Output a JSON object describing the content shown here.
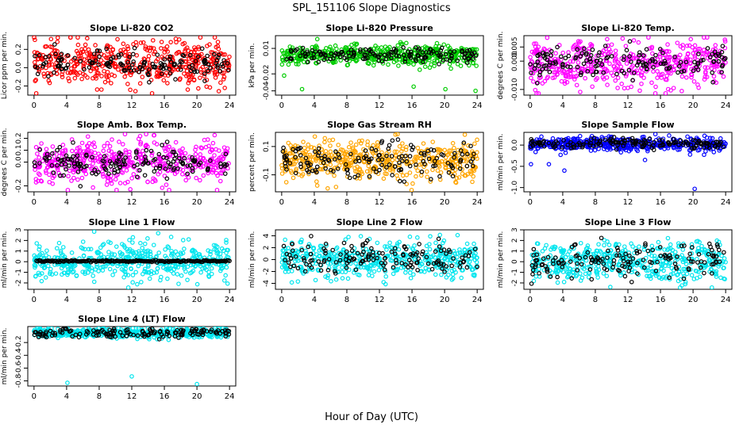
{
  "figure": {
    "title": "SPL_151106  Slope Diagnostics",
    "xlabel": "Hour of Day (UTC)",
    "x_ticks": [
      "0",
      "4",
      "8",
      "12",
      "16",
      "20",
      "24"
    ]
  },
  "chart_data": [
    {
      "type": "scatter",
      "title": "Slope Li-820 CO2",
      "ylabel": "Licor ppm per min.",
      "xlim": [
        0,
        24
      ],
      "ylim": [
        -0.3,
        0.35
      ],
      "y_ticks": [
        "-0.2",
        "0.0",
        "0.2"
      ],
      "y_tick_values": [
        -0.2,
        0.0,
        0.2
      ],
      "series": [
        {
          "color": "#ff0000",
          "x_range": [
            0,
            24
          ],
          "center": 0.05,
          "spread": 0.12
        },
        {
          "color": "#000000",
          "x_range": [
            0,
            24
          ],
          "center": 0.04,
          "spread": 0.07
        }
      ],
      "outliers": []
    },
    {
      "type": "scatter",
      "title": "Slope Li-820 Pressure",
      "ylabel": "kPa per min.",
      "xlim": [
        0,
        24
      ],
      "ylim": [
        -0.045,
        0.025
      ],
      "y_ticks": [
        "-0.04",
        "-0.02",
        "0.01"
      ],
      "y_tick_values": [
        -0.04,
        -0.02,
        0.01
      ],
      "series": [
        {
          "color": "#00cc00",
          "x_range": [
            0,
            24
          ],
          "center": 0.002,
          "spread": 0.006
        },
        {
          "color": "#000000",
          "x_range": [
            0,
            24
          ],
          "center": 0.002,
          "spread": 0.004
        }
      ],
      "outliers": [
        {
          "x": 2.5,
          "y": -0.038,
          "color": "#00cc00"
        },
        {
          "x": 16.2,
          "y": -0.035,
          "color": "#00cc00"
        },
        {
          "x": 23.8,
          "y": -0.04,
          "color": "#00cc00"
        },
        {
          "x": 0.3,
          "y": -0.022,
          "color": "#00cc00"
        },
        {
          "x": 20.1,
          "y": -0.038,
          "color": "#00cc00"
        }
      ]
    },
    {
      "type": "scatter",
      "title": "Slope Li-820 Temp.",
      "ylabel": "degrees C per min.",
      "xlim": [
        0,
        24
      ],
      "ylim": [
        -0.012,
        0.009
      ],
      "y_ticks": [
        "-0.010",
        "0.000",
        "0.005"
      ],
      "y_tick_values": [
        -0.01,
        0.0,
        0.005
      ],
      "series": [
        {
          "color": "#ff00ff",
          "x_range": [
            0,
            24
          ],
          "center": -0.001,
          "spread": 0.004
        },
        {
          "color": "#000000",
          "x_range": [
            0,
            24
          ],
          "center": -0.0005,
          "spread": 0.003
        }
      ],
      "outliers": []
    },
    {
      "type": "scatter",
      "title": "Slope Amb. Box Temp.",
      "ylabel": "degrees C per min.",
      "xlim": [
        0,
        24
      ],
      "ylim": [
        -0.25,
        0.25
      ],
      "y_ticks": [
        "-0.2",
        "0.0",
        "0.1",
        "0.2"
      ],
      "y_tick_values": [
        -0.2,
        0.0,
        0.1,
        0.2
      ],
      "series": [
        {
          "color": "#ff00ff",
          "x_range": [
            0,
            24
          ],
          "center": 0.0,
          "spread": 0.09
        },
        {
          "color": "#000000",
          "x_range": [
            0,
            24
          ],
          "center": 0.0,
          "spread": 0.06
        }
      ],
      "outliers": []
    },
    {
      "type": "scatter",
      "title": "Slope Gas Stream RH",
      "ylabel": "percent per min.",
      "xlim": [
        0,
        24
      ],
      "ylim": [
        -0.22,
        0.2
      ],
      "y_ticks": [
        "-0.1",
        "0.1"
      ],
      "y_tick_values": [
        -0.1,
        0.1
      ],
      "series": [
        {
          "color": "#ffa500",
          "x_range": [
            0,
            24
          ],
          "center": 0.0,
          "spread": 0.07
        },
        {
          "color": "#000000",
          "x_range": [
            0,
            24
          ],
          "center": 0.0,
          "spread": 0.06
        }
      ],
      "outliers": []
    },
    {
      "type": "scatter",
      "title": "Slope Sample Flow",
      "ylabel": "ml/min per min.",
      "xlim": [
        0,
        24
      ],
      "ylim": [
        -1.1,
        0.3
      ],
      "y_ticks": [
        "-1.0",
        "-0.5",
        "0.0"
      ],
      "y_tick_values": [
        -1.0,
        -0.5,
        0.0
      ],
      "series": [
        {
          "color": "#0000ff",
          "x_range": [
            0,
            24
          ],
          "center": 0.02,
          "spread": 0.08
        },
        {
          "color": "#000000",
          "x_range": [
            0,
            24
          ],
          "center": 0.04,
          "spread": 0.06
        }
      ],
      "outliers": [
        {
          "x": 20.2,
          "y": -1.03,
          "color": "#0000ff"
        },
        {
          "x": 0.1,
          "y": -0.45,
          "color": "#0000ff"
        },
        {
          "x": 2.3,
          "y": -0.45,
          "color": "#0000ff"
        },
        {
          "x": 4.2,
          "y": -0.6,
          "color": "#0000ff"
        },
        {
          "x": 14.1,
          "y": -0.35,
          "color": "#0000ff"
        }
      ]
    },
    {
      "type": "scatter",
      "title": "Slope Line 1 Flow",
      "ylabel": "ml/min per min.",
      "xlim": [
        0,
        24
      ],
      "ylim": [
        -2.6,
        3.0
      ],
      "y_ticks": [
        "-2",
        "-1",
        "0",
        "1",
        "2",
        "3"
      ],
      "y_tick_values": [
        -2,
        -1,
        0,
        1,
        2,
        3
      ],
      "series": [
        {
          "color": "#00e5ee",
          "x_range": [
            0,
            24
          ],
          "center": 0.0,
          "spread": 0.9
        },
        {
          "color": "#000000",
          "x_range": [
            0.3,
            24
          ],
          "center": 0.05,
          "spread": 0.04,
          "even": true
        }
      ],
      "outliers": []
    },
    {
      "type": "scatter",
      "title": "Slope Line 2 Flow",
      "ylabel": "ml/min per min.",
      "xlim": [
        0,
        24
      ],
      "ylim": [
        -5,
        5
      ],
      "y_ticks": [
        "-4",
        "-2",
        "0",
        "2",
        "4"
      ],
      "y_tick_values": [
        -4,
        -2,
        0,
        2,
        4
      ],
      "series": [
        {
          "color": "#00e5ee",
          "x_range": [
            0,
            24
          ],
          "center": 0.0,
          "spread": 1.5
        },
        {
          "color": "#000000",
          "x_range": [
            0,
            24
          ],
          "center": 0.3,
          "spread": 1.3
        }
      ],
      "outliers": []
    },
    {
      "type": "scatter",
      "title": "Slope Line 3 Flow",
      "ylabel": "ml/min per min.",
      "xlim": [
        0,
        24
      ],
      "ylim": [
        -2.6,
        3.0
      ],
      "y_ticks": [
        "-2",
        "-1",
        "0",
        "1",
        "2",
        "3"
      ],
      "y_tick_values": [
        -2,
        -1,
        0,
        1,
        2,
        3
      ],
      "series": [
        {
          "color": "#00e5ee",
          "x_range": [
            0,
            24
          ],
          "center": 0.0,
          "spread": 0.9
        },
        {
          "color": "#000000",
          "x_range": [
            0,
            24
          ],
          "center": 0.0,
          "spread": 0.8
        }
      ],
      "outliers": []
    },
    {
      "type": "scatter",
      "title": "Slope Line 4 (LT) Flow",
      "ylabel": "ml/min per min.",
      "xlim": [
        0,
        24
      ],
      "ylim": [
        -0.88,
        0.05
      ],
      "y_ticks": [
        "-0.8",
        "-0.6",
        "-0.4",
        "-0.2"
      ],
      "y_tick_values": [
        -0.8,
        -0.6,
        -0.4,
        -0.2
      ],
      "series": [
        {
          "color": "#00e5ee",
          "x_range": [
            0,
            24
          ],
          "center": -0.05,
          "spread": 0.04
        },
        {
          "color": "#000000",
          "x_range": [
            0,
            24
          ],
          "center": -0.05,
          "spread": 0.035
        }
      ],
      "outliers": [
        {
          "x": 4.1,
          "y": -0.83,
          "color": "#00e5ee"
        },
        {
          "x": 12.0,
          "y": -0.73,
          "color": "#00e5ee"
        },
        {
          "x": 20.0,
          "y": -0.85,
          "color": "#00e5ee"
        }
      ]
    }
  ]
}
